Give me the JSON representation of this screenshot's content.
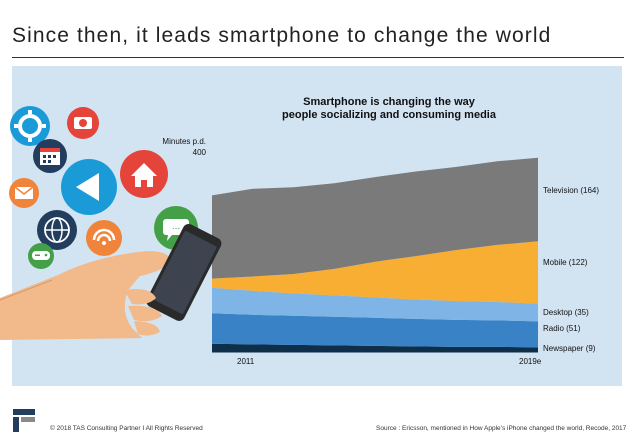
{
  "slide": {
    "title": "Since then, it leads smartphone to change the world"
  },
  "chart_data": {
    "type": "area",
    "title_lines": [
      "Smartphone is changing the way",
      "people socializing and consuming media"
    ],
    "y_unit_lines": [
      "Minutes p.d.",
      "400"
    ],
    "ylim": [
      0,
      400
    ],
    "x_ticks": [
      "2011",
      "2019e"
    ],
    "x": [
      "2011",
      "2012",
      "2013",
      "2014",
      "2015",
      "2016",
      "2017",
      "2018",
      "2019e"
    ],
    "series": [
      {
        "name": "Newspaper (9)",
        "color": "#0d2f4a",
        "values": [
          16,
          15,
          14,
          13,
          12,
          11,
          10,
          10,
          9
        ]
      },
      {
        "name": "Radio (51)",
        "color": "#3a82c6",
        "values": [
          60,
          58,
          57,
          56,
          55,
          54,
          53,
          52,
          51
        ]
      },
      {
        "name": "Desktop (35)",
        "color": "#7eb4e6",
        "values": [
          50,
          47,
          44,
          42,
          40,
          38,
          37,
          36,
          35
        ]
      },
      {
        "name": "Mobile (122)",
        "color": "#f7ae33",
        "values": [
          18,
          28,
          38,
          52,
          70,
          85,
          100,
          112,
          122
        ]
      },
      {
        "name": "Television (164)",
        "color": "#7a7a7a",
        "values": [
          163,
          172,
          170,
          168,
          166,
          166,
          163,
          164,
          164
        ]
      }
    ]
  },
  "illustration": {
    "icons": [
      "gear-icon",
      "camera-icon",
      "calendar-icon",
      "home-icon",
      "mail-icon",
      "back-arrow-icon",
      "globe-icon",
      "wifi-icon",
      "chat-icon",
      "gamepad-icon"
    ],
    "chat_glyph": "...",
    "colors": {
      "blue": "#1a9bd8",
      "red": "#e5443a",
      "orange": "#f0843a",
      "navy": "#233d5e",
      "green": "#43a047"
    }
  },
  "footer": {
    "copyright": "© 2018 TAS Consulting Partner  I  All Rights Reserved",
    "source": "Source : Ericsson, mentioned in How Apple’s iPhone changed the world,  Recode, 2017"
  }
}
